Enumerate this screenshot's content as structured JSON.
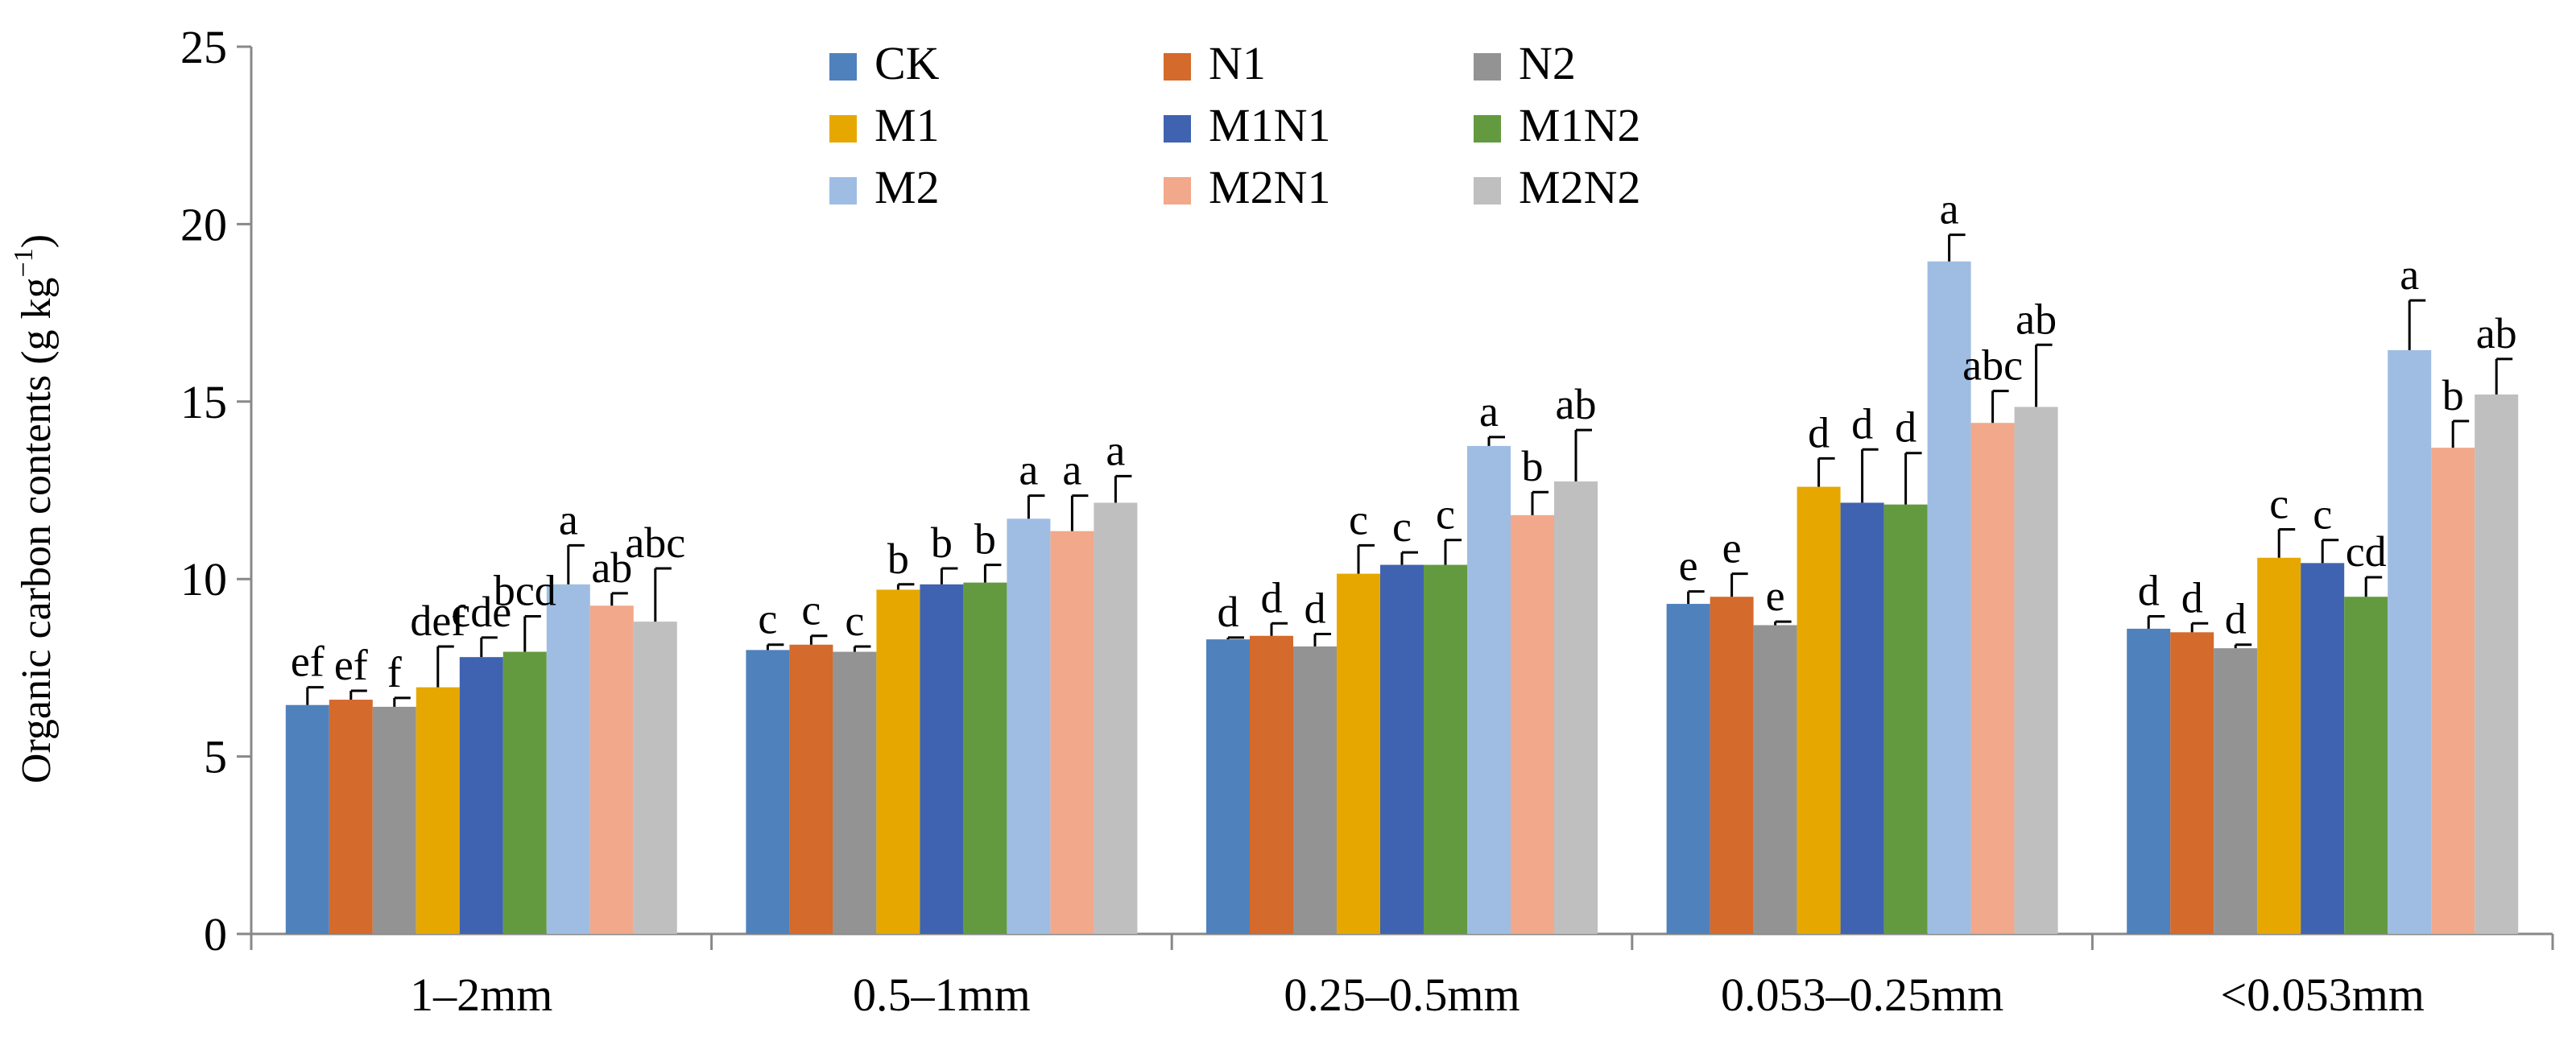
{
  "chart_data": {
    "type": "bar",
    "title": "",
    "xlabel": "",
    "ylabel": {
      "main": "Organic carbon contents (g kg",
      "sup": "−1",
      "close": ")"
    },
    "ylim": [
      0,
      25
    ],
    "yticks": [
      "0",
      "5",
      "10",
      "15",
      "20",
      "25"
    ],
    "categories": [
      "1–2mm",
      "0.5–1mm",
      "0.25–0.5mm",
      "0.053–0.25mm",
      "<0.053mm"
    ],
    "legend_position": "top-center",
    "series": [
      {
        "name": "CK",
        "color": "#4f81bd",
        "values": [
          6.45,
          8.0,
          8.3,
          9.3,
          8.6
        ],
        "errors": [
          0.5,
          0.15,
          0.05,
          0.35,
          0.35
        ],
        "labels": [
          "ef",
          "c",
          "d",
          "e",
          "d"
        ]
      },
      {
        "name": "N1",
        "color": "#d46a2b",
        "values": [
          6.6,
          8.15,
          8.4,
          9.5,
          8.5
        ],
        "errors": [
          0.25,
          0.25,
          0.35,
          0.65,
          0.25
        ],
        "labels": [
          "ef",
          "c",
          "d",
          "e",
          "d"
        ]
      },
      {
        "name": "N2",
        "color": "#939393",
        "values": [
          6.4,
          7.95,
          8.1,
          8.7,
          8.05
        ],
        "errors": [
          0.25,
          0.15,
          0.35,
          0.1,
          0.1
        ],
        "labels": [
          "f",
          "c",
          "d",
          "e",
          "d"
        ]
      },
      {
        "name": "M1",
        "color": "#e6a800",
        "values": [
          6.95,
          9.7,
          10.15,
          12.6,
          10.6
        ],
        "errors": [
          1.15,
          0.15,
          0.8,
          0.8,
          0.8
        ],
        "labels": [
          "def",
          "b",
          "c",
          "d",
          "c"
        ]
      },
      {
        "name": "M1N1",
        "color": "#3f63b0",
        "values": [
          7.8,
          9.85,
          10.4,
          12.15,
          10.45
        ],
        "errors": [
          0.55,
          0.45,
          0.35,
          1.5,
          0.65
        ],
        "labels": [
          "cde",
          "b",
          "c",
          "d",
          "c"
        ]
      },
      {
        "name": "M1N2",
        "color": "#639a3f",
        "values": [
          7.95,
          9.9,
          10.4,
          12.1,
          9.5
        ],
        "errors": [
          1.0,
          0.5,
          0.7,
          1.45,
          0.55
        ],
        "labels": [
          "bcd",
          "b",
          "c",
          "d",
          "cd"
        ]
      },
      {
        "name": "M2",
        "color": "#9fbde3",
        "values": [
          9.85,
          11.7,
          13.75,
          18.95,
          16.45
        ],
        "errors": [
          1.1,
          0.65,
          0.25,
          0.75,
          1.4
        ],
        "labels": [
          "a",
          "a",
          "a",
          "a",
          "a"
        ]
      },
      {
        "name": "M2N1",
        "color": "#f2a88a",
        "values": [
          9.25,
          11.35,
          11.8,
          14.4,
          13.7
        ],
        "errors": [
          0.35,
          1.0,
          0.65,
          0.9,
          0.75
        ],
        "labels": [
          "ab",
          "a",
          "b",
          "abc",
          "b"
        ]
      },
      {
        "name": "M2N2",
        "color": "#bfbfbf",
        "values": [
          8.8,
          12.15,
          12.75,
          14.85,
          15.2
        ],
        "errors": [
          1.5,
          0.75,
          1.45,
          1.75,
          1.0
        ],
        "labels": [
          "abc",
          "a",
          "ab",
          "ab",
          "ab"
        ]
      }
    ]
  }
}
